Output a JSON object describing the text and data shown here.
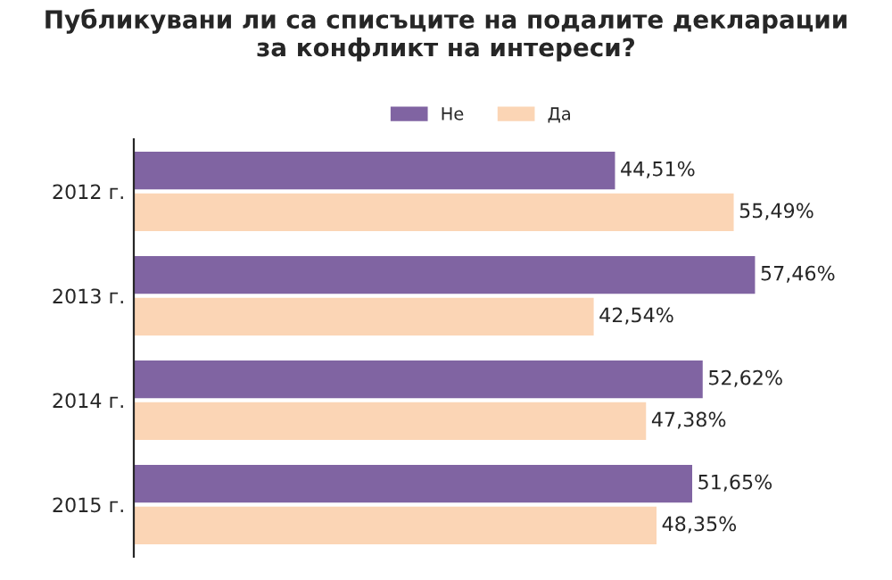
{
  "chart_data": {
    "type": "bar",
    "orientation": "horizontal",
    "title": "Публикувани ли са списъците на подалите декларации\nза конфликт на интереси?",
    "categories": [
      "2012 г.",
      "2013 г.",
      "2014 г.",
      "2015 г."
    ],
    "series": [
      {
        "name": "Не",
        "color": "#8064a2",
        "values": [
          44.51,
          57.46,
          52.62,
          51.65
        ],
        "value_labels": [
          "44,51%",
          "57,46%",
          "52,62%",
          "51,65%"
        ]
      },
      {
        "name": "Да",
        "color": "#fbd5b5",
        "values": [
          55.49,
          42.54,
          47.38,
          48.35
        ],
        "value_labels": [
          "55,49%",
          "42,54%",
          "47,38%",
          "48,35%"
        ]
      }
    ],
    "legend": "top",
    "grid": false
  }
}
